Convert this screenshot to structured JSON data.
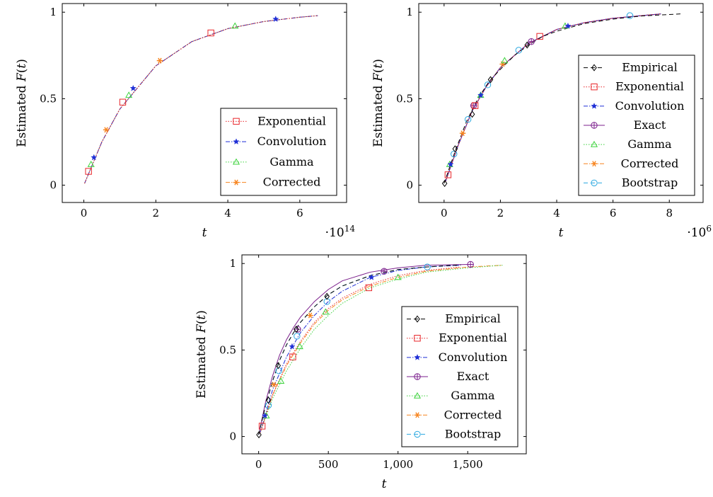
{
  "colors": {
    "Empirical": "#000000",
    "Exponential": "#e8262a",
    "Convolution": "#1f2fd6",
    "Exact": "#7b1f8c",
    "Gamma": "#3fd33f",
    "Corrected": "#f7841e",
    "Bootstrap": "#2aa8e0"
  },
  "chart_data": [
    {
      "type": "line",
      "xlabel": "t",
      "ylabel": "Estimated F(t)",
      "xlim": [
        -0.6,
        7.3
      ],
      "ylim": [
        -0.1,
        1.05
      ],
      "xticks": [
        0,
        2,
        4,
        6
      ],
      "xtick_labels": [
        "0",
        "2",
        "4",
        "6"
      ],
      "yticks": [
        0,
        0.5,
        1
      ],
      "ytick_labels": [
        "0",
        "0.5",
        "1"
      ],
      "x_multiplier": "·10^14",
      "grid": false,
      "legend_position": "lower-right",
      "legend": [
        "Exponential",
        "Convolution",
        "Gamma",
        "Corrected"
      ],
      "series": [
        {
          "name": "Exponential",
          "x": [
            0.02,
            0.5,
            1,
            2,
            3,
            4,
            5,
            6,
            6.5
          ],
          "y": [
            0.01,
            0.25,
            0.44,
            0.69,
            0.83,
            0.905,
            0.946,
            0.971,
            0.98
          ],
          "marks": [
            [
              0.13,
              0.08
            ],
            [
              1.08,
              0.48
            ],
            [
              3.53,
              0.88
            ]
          ]
        },
        {
          "name": "Convolution",
          "x": [
            0.02,
            0.5,
            1,
            2,
            3,
            4,
            5,
            6,
            6.5
          ],
          "y": [
            0.01,
            0.25,
            0.44,
            0.69,
            0.83,
            0.905,
            0.946,
            0.971,
            0.98
          ],
          "marks": [
            [
              0.28,
              0.16
            ],
            [
              1.37,
              0.56
            ],
            [
              5.33,
              0.96
            ]
          ]
        },
        {
          "name": "Gamma",
          "x": [
            0.02,
            0.5,
            1,
            2,
            3,
            4,
            5,
            6,
            6.5
          ],
          "y": [
            0.01,
            0.25,
            0.44,
            0.69,
            0.83,
            0.905,
            0.946,
            0.971,
            0.98
          ],
          "marks": [
            [
              0.2,
              0.12
            ],
            [
              1.25,
              0.52
            ],
            [
              4.2,
              0.92
            ]
          ]
        },
        {
          "name": "Corrected",
          "x": [
            0.02,
            0.5,
            1,
            2,
            3,
            4,
            5,
            6,
            6.5
          ],
          "y": [
            0.01,
            0.25,
            0.44,
            0.69,
            0.83,
            0.905,
            0.946,
            0.971,
            0.98
          ],
          "marks": [
            [
              0.62,
              0.32
            ],
            [
              2.11,
              0.72
            ]
          ]
        }
      ]
    },
    {
      "type": "line",
      "xlabel": "t",
      "ylabel": "Estimated F(t)",
      "xlim": [
        -0.9,
        9.2
      ],
      "ylim": [
        -0.1,
        1.05
      ],
      "xticks": [
        0,
        2,
        4,
        6,
        8
      ],
      "xtick_labels": [
        "0",
        "2",
        "4",
        "6",
        "8"
      ],
      "yticks": [
        0,
        0.5,
        1
      ],
      "ytick_labels": [
        "0",
        "0.5",
        "1"
      ],
      "x_multiplier": "·10^6",
      "grid": false,
      "legend_position": "lower-right",
      "legend": [
        "Empirical",
        "Exponential",
        "Convolution",
        "Exact",
        "Gamma",
        "Corrected",
        "Bootstrap"
      ],
      "series": [
        {
          "name": "Empirical",
          "x": [
            0,
            0.4,
            0.8,
            1.2,
            1.6,
            2,
            2.5,
            3,
            3.5,
            4,
            5,
            6,
            7,
            8.4
          ],
          "y": [
            0.01,
            0.2,
            0.37,
            0.5,
            0.6,
            0.67,
            0.75,
            0.81,
            0.86,
            0.89,
            0.935,
            0.96,
            0.978,
            0.99
          ],
          "marks": [
            [
              0.02,
              0.01
            ],
            [
              0.39,
              0.21
            ],
            [
              1.0,
              0.41
            ],
            [
              1.65,
              0.61
            ],
            [
              2.95,
              0.81
            ]
          ]
        },
        {
          "name": "Exponential",
          "x": [
            0.05,
            0.5,
            1,
            1.5,
            2,
            3,
            4,
            5,
            6,
            7,
            7.7
          ],
          "y": [
            0.02,
            0.23,
            0.43,
            0.57,
            0.68,
            0.82,
            0.9,
            0.94,
            0.965,
            0.98,
            0.99
          ],
          "marks": [
            [
              0.14,
              0.06
            ],
            [
              1.1,
              0.46
            ],
            [
              3.4,
              0.86
            ]
          ]
        },
        {
          "name": "Convolution",
          "x": [
            0.05,
            0.5,
            1,
            1.5,
            2,
            3,
            4,
            5,
            6,
            7,
            7.7
          ],
          "y": [
            0.02,
            0.23,
            0.43,
            0.57,
            0.68,
            0.82,
            0.9,
            0.94,
            0.965,
            0.98,
            0.99
          ],
          "marks": [
            [
              0.23,
              0.12
            ],
            [
              1.3,
              0.52
            ],
            [
              4.4,
              0.92
            ]
          ]
        },
        {
          "name": "Exact",
          "x": [
            0.05,
            0.5,
            1,
            1.5,
            2,
            3,
            4,
            5,
            6,
            7,
            7.7
          ],
          "y": [
            0.02,
            0.23,
            0.43,
            0.57,
            0.68,
            0.82,
            0.9,
            0.94,
            0.965,
            0.98,
            0.99
          ],
          "marks": [
            [
              1.05,
              0.46
            ],
            [
              3.1,
              0.83
            ]
          ]
        },
        {
          "name": "Gamma",
          "x": [
            0.05,
            0.5,
            1,
            1.5,
            2,
            3,
            4,
            5,
            6,
            7,
            7.7
          ],
          "y": [
            0.02,
            0.23,
            0.43,
            0.57,
            0.68,
            0.82,
            0.9,
            0.94,
            0.965,
            0.98,
            0.99
          ],
          "marks": [
            [
              0.2,
              0.12
            ],
            [
              1.3,
              0.52
            ],
            [
              2.15,
              0.72
            ],
            [
              4.3,
              0.92
            ]
          ]
        },
        {
          "name": "Corrected",
          "x": [
            0.05,
            0.5,
            1,
            1.5,
            2,
            3,
            4,
            5,
            6,
            7,
            7.7
          ],
          "y": [
            0.02,
            0.23,
            0.43,
            0.57,
            0.68,
            0.82,
            0.9,
            0.94,
            0.965,
            0.98,
            0.99
          ],
          "marks": [
            [
              0.66,
              0.3
            ],
            [
              2.08,
              0.7
            ]
          ]
        },
        {
          "name": "Bootstrap",
          "x": [
            0.05,
            0.5,
            1,
            1.5,
            2,
            3,
            4,
            5,
            6,
            7,
            7.7
          ],
          "y": [
            0.02,
            0.23,
            0.43,
            0.57,
            0.68,
            0.82,
            0.9,
            0.94,
            0.965,
            0.98,
            0.99
          ],
          "marks": [
            [
              0.35,
              0.18
            ],
            [
              0.85,
              0.38
            ],
            [
              1.55,
              0.58
            ],
            [
              2.65,
              0.78
            ],
            [
              6.6,
              0.98
            ]
          ]
        }
      ]
    },
    {
      "type": "line",
      "xlabel": "t",
      "ylabel": "Estimated F(t)",
      "xlim": [
        -120,
        1920
      ],
      "ylim": [
        -0.1,
        1.05
      ],
      "xticks": [
        0,
        500,
        1000,
        1500
      ],
      "xtick_labels": [
        "0",
        "500",
        "1,000",
        "1,500"
      ],
      "yticks": [
        0,
        0.5,
        1
      ],
      "ytick_labels": [
        "0",
        "0.5",
        "1"
      ],
      "grid": false,
      "legend_position": "lower-right",
      "legend": [
        "Empirical",
        "Exponential",
        "Convolution",
        "Exact",
        "Gamma",
        "Corrected",
        "Bootstrap"
      ],
      "series": [
        {
          "name": "Empirical",
          "x": [
            0,
            50,
            100,
            150,
            200,
            250,
            300,
            400,
            500,
            600,
            800,
            1000,
            1200,
            1450
          ],
          "y": [
            0.01,
            0.18,
            0.32,
            0.44,
            0.53,
            0.6,
            0.66,
            0.75,
            0.82,
            0.87,
            0.93,
            0.965,
            0.98,
            0.992
          ],
          "marks": [
            [
              2,
              0.01
            ],
            [
              70,
              0.21
            ],
            [
              140,
              0.41
            ],
            [
              270,
              0.62
            ],
            [
              490,
              0.81
            ]
          ]
        },
        {
          "name": "Exponential",
          "x": [
            10,
            100,
            200,
            300,
            400,
            500,
            600,
            800,
            1000,
            1200,
            1450
          ],
          "y": [
            0.02,
            0.24,
            0.42,
            0.55,
            0.66,
            0.74,
            0.8,
            0.88,
            0.93,
            0.96,
            0.98
          ],
          "marks": [
            [
              25,
              0.06
            ],
            [
              245,
              0.46
            ],
            [
              790,
              0.86
            ]
          ]
        },
        {
          "name": "Convolution",
          "x": [
            10,
            100,
            200,
            300,
            400,
            500,
            600,
            800,
            1000,
            1200,
            1450
          ],
          "y": [
            0.02,
            0.27,
            0.46,
            0.6,
            0.7,
            0.78,
            0.84,
            0.92,
            0.96,
            0.98,
            0.99
          ],
          "marks": [
            [
              45,
              0.12
            ],
            [
              240,
              0.52
            ],
            [
              810,
              0.92
            ]
          ]
        },
        {
          "name": "Exact",
          "x": [
            0,
            50,
            100,
            150,
            200,
            250,
            300,
            400,
            500,
            600,
            800,
            1000,
            1200,
            1520
          ],
          "y": [
            0.01,
            0.2,
            0.35,
            0.47,
            0.56,
            0.63,
            0.69,
            0.78,
            0.85,
            0.9,
            0.95,
            0.975,
            0.99,
            0.995
          ],
          "marks": [
            [
              280,
              0.62
            ],
            [
              900,
              0.955
            ],
            [
              1520,
              0.995
            ]
          ]
        },
        {
          "name": "Gamma",
          "x": [
            10,
            100,
            200,
            300,
            400,
            500,
            600,
            800,
            1000,
            1200,
            1500,
            1750
          ],
          "y": [
            0.02,
            0.22,
            0.38,
            0.51,
            0.62,
            0.7,
            0.77,
            0.86,
            0.91,
            0.95,
            0.975,
            0.99
          ],
          "marks": [
            [
              55,
              0.12
            ],
            [
              160,
              0.32
            ],
            [
              295,
              0.52
            ],
            [
              480,
              0.72
            ],
            [
              1000,
              0.92
            ]
          ]
        },
        {
          "name": "Corrected",
          "x": [
            10,
            100,
            200,
            300,
            400,
            500,
            600,
            800,
            1000,
            1200,
            1500,
            1750
          ],
          "y": [
            0.02,
            0.24,
            0.41,
            0.54,
            0.65,
            0.73,
            0.79,
            0.87,
            0.92,
            0.955,
            0.98,
            0.99
          ],
          "marks": [
            [
              110,
              0.3
            ],
            [
              370,
              0.7
            ]
          ]
        },
        {
          "name": "Bootstrap",
          "x": [
            0,
            50,
            100,
            150,
            200,
            250,
            300,
            400,
            500,
            600,
            800,
            1000,
            1200,
            1450
          ],
          "y": [
            0.01,
            0.18,
            0.32,
            0.44,
            0.53,
            0.6,
            0.66,
            0.75,
            0.82,
            0.87,
            0.93,
            0.965,
            0.98,
            0.992
          ],
          "marks": [
            [
              70,
              0.18
            ],
            [
              145,
              0.38
            ],
            [
              275,
              0.58
            ],
            [
              490,
              0.78
            ],
            [
              1210,
              0.98
            ]
          ]
        }
      ]
    }
  ]
}
